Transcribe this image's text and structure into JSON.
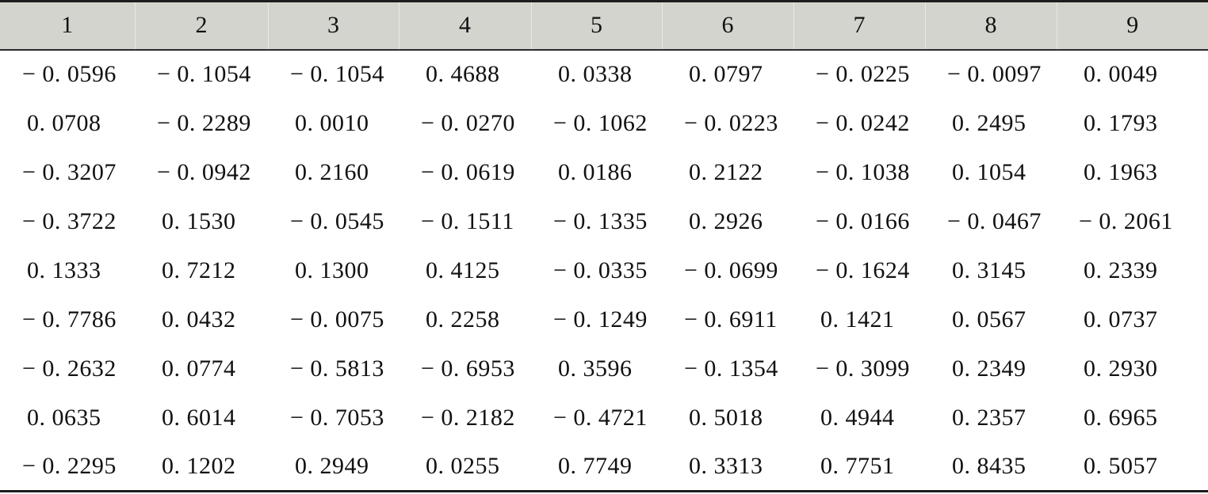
{
  "table": {
    "headers": [
      "1",
      "2",
      "3",
      "4",
      "5",
      "6",
      "7",
      "8",
      "9"
    ],
    "rows": [
      [
        "− 0. 0596",
        "− 0. 1054",
        "− 0. 1054",
        "0. 4688",
        "0. 0338",
        "0. 0797",
        "− 0. 0225",
        "− 0. 0097",
        "0. 0049"
      ],
      [
        "0. 0708",
        "− 0. 2289",
        "0. 0010",
        "− 0. 0270",
        "− 0. 1062",
        "− 0. 0223",
        "− 0. 0242",
        "0. 2495",
        "0. 1793"
      ],
      [
        "− 0. 3207",
        "− 0. 0942",
        "0. 2160",
        "− 0. 0619",
        "0. 0186",
        "0. 2122",
        "− 0. 1038",
        "0. 1054",
        "0. 1963"
      ],
      [
        "− 0. 3722",
        "0. 1530",
        "− 0. 0545",
        "− 0. 1511",
        "− 0. 1335",
        "0. 2926",
        "− 0. 0166",
        "− 0. 0467",
        "− 0. 2061"
      ],
      [
        "0. 1333",
        "0. 7212",
        "0. 1300",
        "0. 4125",
        "− 0. 0335",
        "− 0. 0699",
        "− 0. 1624",
        "0. 3145",
        "0. 2339"
      ],
      [
        "− 0. 7786",
        "0. 0432",
        "− 0. 0075",
        "0. 2258",
        "− 0. 1249",
        "− 0. 6911",
        "0. 1421",
        "0. 0567",
        "0. 0737"
      ],
      [
        "− 0. 2632",
        "0. 0774",
        "− 0. 5813",
        "− 0. 6953",
        "0. 3596",
        "− 0. 1354",
        "− 0. 3099",
        "0. 2349",
        "0. 2930"
      ],
      [
        "0. 0635",
        "0. 6014",
        "− 0. 7053",
        "− 0. 2182",
        "− 0. 4721",
        "0. 5018",
        "0. 4944",
        "0. 2357",
        "0. 6965"
      ],
      [
        "− 0. 2295",
        "0. 1202",
        "0. 2949",
        "0. 0255",
        "0. 7749",
        "0. 3313",
        "0. 7751",
        "0. 8435",
        "0. 5057"
      ]
    ]
  }
}
